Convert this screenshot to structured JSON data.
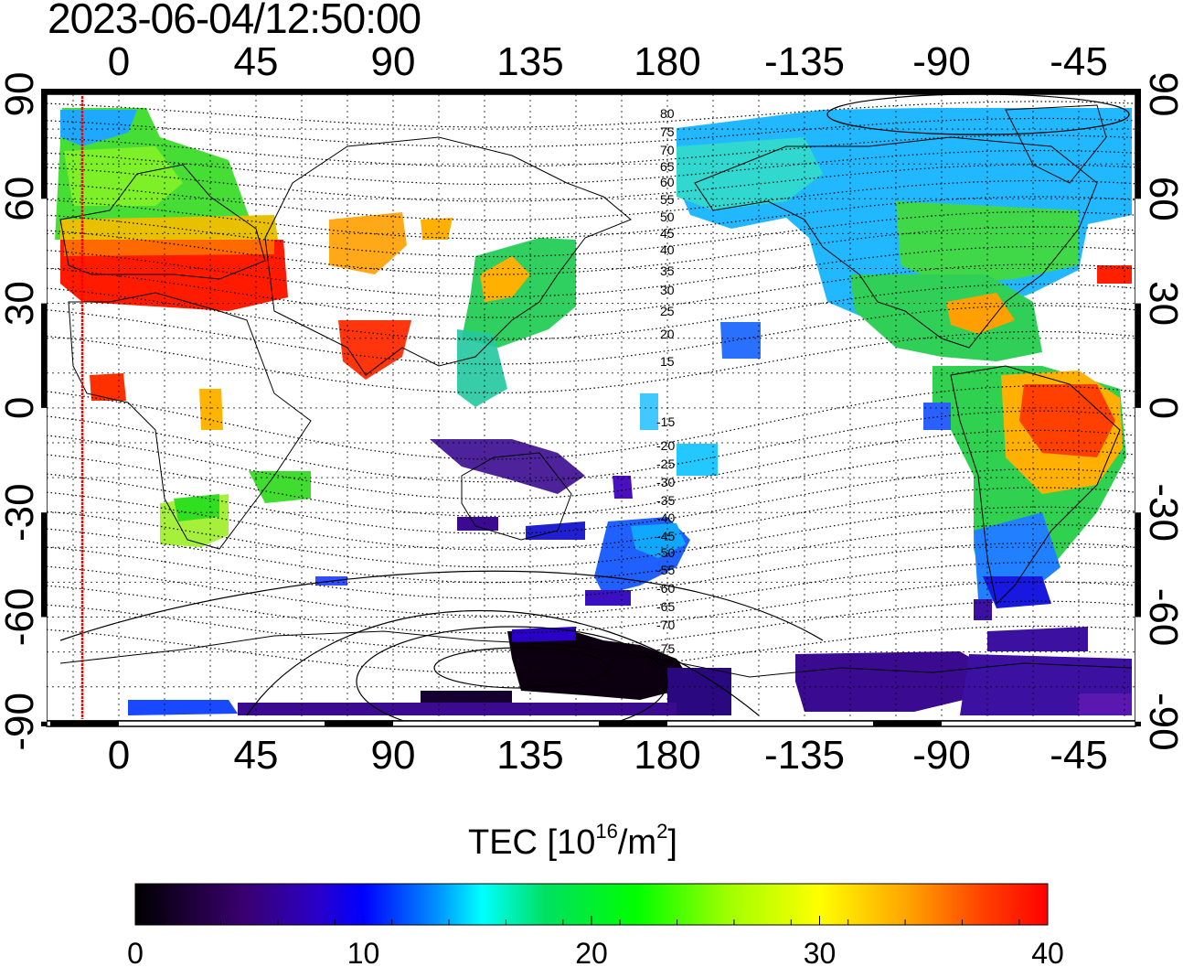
{
  "timestamp": "2023-06-04/12:50:00",
  "map": {
    "lon_ticks_top": [
      "0",
      "45",
      "90",
      "135",
      "180",
      "-135",
      "-90",
      "-45"
    ],
    "lon_ticks_bottom": [
      "0",
      "45",
      "90",
      "135",
      "180",
      "-135",
      "-90",
      "-45"
    ],
    "lat_ticks_left": [
      "90",
      "60",
      "30",
      "0",
      "-30",
      "-60",
      "-90"
    ],
    "lat_ticks_right": [
      "90",
      "60",
      "30",
      "0",
      "-30",
      "-60",
      "-90"
    ],
    "contour_labels_north": [
      "80",
      "75",
      "70",
      "65",
      "60",
      "55",
      "50",
      "45",
      "40",
      "35",
      "30",
      "25",
      "20",
      "15"
    ],
    "contour_labels_south": [
      "-15",
      "-20",
      "-25",
      "-30",
      "-35",
      "-40",
      "-45",
      "-50",
      "-55",
      "-60",
      "-65",
      "-70",
      "-75"
    ],
    "marker_longitude_color": "#ff0000"
  },
  "colorbar": {
    "title_main": "TEC  [10",
    "title_exp": "16",
    "title_unit": "/m",
    "title_exp2": "2",
    "title_close": "]",
    "ticks": [
      "0",
      "10",
      "20",
      "30",
      "40"
    ],
    "min": 0,
    "max": 40,
    "colors": [
      "#000000",
      "#3a0070",
      "#2a00c8",
      "#0000ff",
      "#0090ff",
      "#00ffff",
      "#00e060",
      "#00ff00",
      "#a0ff00",
      "#ffff00",
      "#ffa000",
      "#ff4000",
      "#ff0000"
    ]
  }
}
